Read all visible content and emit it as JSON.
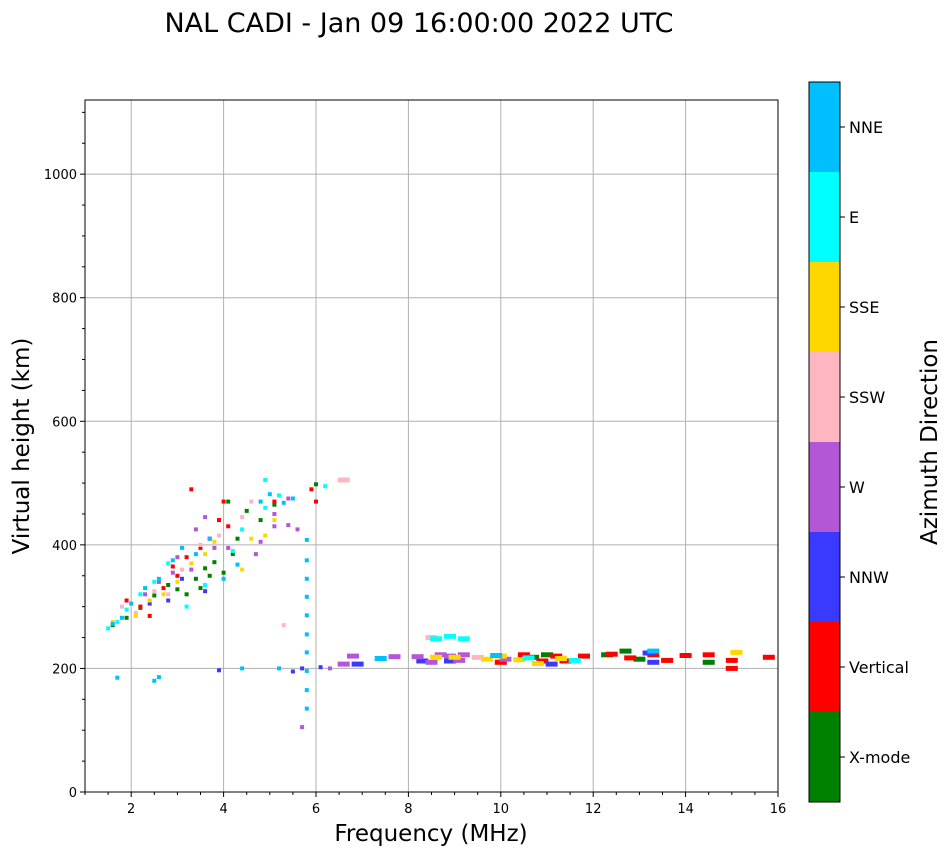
{
  "chart_data": {
    "type": "scatter",
    "title": "NAL CADI - Jan 09 16:00:00 2022 UTC",
    "xlabel": "Frequency (MHz)",
    "ylabel": "Virtual height (km)",
    "xlim": [
      1,
      16
    ],
    "ylim": [
      0,
      1120
    ],
    "xticks": [
      2,
      4,
      6,
      8,
      10,
      12,
      14,
      16
    ],
    "yticks": [
      0,
      200,
      400,
      600,
      800,
      1000
    ],
    "grid": true,
    "colorbar": {
      "label": "Azimuth Direction",
      "categories": [
        {
          "name": "X-mode",
          "color": "#008000"
        },
        {
          "name": "Vertical",
          "color": "#ff0000"
        },
        {
          "name": "NNW",
          "color": "#3a3aff"
        },
        {
          "name": "W",
          "color": "#b357d6"
        },
        {
          "name": "SSW",
          "color": "#ffb6c1"
        },
        {
          "name": "SSE",
          "color": "#ffd700"
        },
        {
          "name": "E",
          "color": "#00ffff"
        },
        {
          "name": "NNE",
          "color": "#00bfff"
        }
      ]
    },
    "series": [
      {
        "name": "X-mode",
        "points": [
          [
            1.6,
            270
          ],
          [
            1.9,
            282
          ],
          [
            2.2,
            298
          ],
          [
            2.5,
            318
          ],
          [
            2.8,
            335
          ],
          [
            3.0,
            328
          ],
          [
            3.2,
            320
          ],
          [
            3.4,
            345
          ],
          [
            3.5,
            330
          ],
          [
            3.6,
            362
          ],
          [
            3.7,
            350
          ],
          [
            3.8,
            372
          ],
          [
            4.0,
            355
          ],
          [
            4.2,
            385
          ],
          [
            4.3,
            410
          ],
          [
            4.5,
            455
          ],
          [
            4.1,
            470
          ],
          [
            4.8,
            440
          ],
          [
            5.1,
            465
          ],
          [
            6.0,
            498
          ],
          [
            10.7,
            218
          ],
          [
            11.0,
            222
          ],
          [
            12.3,
            222
          ],
          [
            12.7,
            228
          ],
          [
            13.0,
            215
          ],
          [
            14.5,
            210
          ]
        ]
      },
      {
        "name": "Vertical",
        "points": [
          [
            1.9,
            310
          ],
          [
            2.2,
            300
          ],
          [
            2.4,
            285
          ],
          [
            2.7,
            330
          ],
          [
            2.9,
            365
          ],
          [
            3.0,
            350
          ],
          [
            3.2,
            380
          ],
          [
            3.3,
            490
          ],
          [
            3.5,
            395
          ],
          [
            3.7,
            410
          ],
          [
            3.9,
            440
          ],
          [
            4.0,
            470
          ],
          [
            4.1,
            430
          ],
          [
            5.1,
            470
          ],
          [
            5.9,
            490
          ],
          [
            6.0,
            470
          ],
          [
            10.0,
            210
          ],
          [
            10.5,
            222
          ],
          [
            10.9,
            212
          ],
          [
            11.2,
            220
          ],
          [
            11.4,
            212
          ],
          [
            11.8,
            220
          ],
          [
            12.4,
            223
          ],
          [
            12.8,
            217
          ],
          [
            13.3,
            222
          ],
          [
            13.6,
            213
          ],
          [
            14.0,
            221
          ],
          [
            14.5,
            222
          ],
          [
            15.0,
            213
          ],
          [
            15.0,
            200
          ],
          [
            15.8,
            218
          ]
        ]
      },
      {
        "name": "NNW",
        "points": [
          [
            2.4,
            305
          ],
          [
            2.8,
            310
          ],
          [
            3.1,
            345
          ],
          [
            3.6,
            325
          ],
          [
            3.9,
            197
          ],
          [
            5.5,
            195
          ],
          [
            5.7,
            200
          ],
          [
            6.1,
            202
          ],
          [
            6.9,
            207
          ],
          [
            8.3,
            212
          ],
          [
            8.9,
            212
          ],
          [
            11.1,
            207
          ],
          [
            13.2,
            225
          ],
          [
            13.3,
            210
          ]
        ]
      },
      {
        "name": "W",
        "points": [
          [
            2.3,
            320
          ],
          [
            2.6,
            340
          ],
          [
            2.9,
            355
          ],
          [
            3.0,
            380
          ],
          [
            3.3,
            360
          ],
          [
            3.4,
            425
          ],
          [
            3.6,
            445
          ],
          [
            3.8,
            395
          ],
          [
            4.1,
            395
          ],
          [
            4.7,
            385
          ],
          [
            4.8,
            405
          ],
          [
            5.1,
            430
          ],
          [
            5.4,
            432
          ],
          [
            5.6,
            425
          ],
          [
            5.4,
            475
          ],
          [
            5.1,
            450
          ],
          [
            5.7,
            105
          ],
          [
            6.3,
            200
          ],
          [
            6.6,
            207
          ],
          [
            6.8,
            220
          ],
          [
            7.7,
            219
          ],
          [
            8.2,
            219
          ],
          [
            8.5,
            210
          ],
          [
            8.7,
            222
          ],
          [
            8.9,
            220
          ],
          [
            9.1,
            213
          ],
          [
            9.2,
            222
          ],
          [
            10.1,
            215
          ]
        ]
      },
      {
        "name": "SSW",
        "points": [
          [
            1.8,
            300
          ],
          [
            2.1,
            290
          ],
          [
            2.5,
            325
          ],
          [
            2.8,
            320
          ],
          [
            3.1,
            360
          ],
          [
            3.5,
            400
          ],
          [
            3.9,
            415
          ],
          [
            4.4,
            445
          ],
          [
            4.6,
            470
          ],
          [
            5.3,
            270
          ],
          [
            6.6,
            505
          ],
          [
            8.5,
            250
          ],
          [
            9.5,
            218
          ]
        ]
      },
      {
        "name": "SSE",
        "points": [
          [
            1.6,
            275
          ],
          [
            2.1,
            285
          ],
          [
            2.4,
            310
          ],
          [
            2.7,
            320
          ],
          [
            3.0,
            340
          ],
          [
            3.3,
            370
          ],
          [
            3.6,
            385
          ],
          [
            3.8,
            405
          ],
          [
            4.4,
            360
          ],
          [
            4.6,
            410
          ],
          [
            4.9,
            415
          ],
          [
            5.1,
            440
          ],
          [
            8.6,
            218
          ],
          [
            9.0,
            218
          ],
          [
            9.7,
            215
          ],
          [
            10.0,
            220
          ],
          [
            10.4,
            214
          ],
          [
            10.8,
            208
          ],
          [
            11.3,
            216
          ],
          [
            15.1,
            226
          ]
        ]
      },
      {
        "name": "E",
        "points": [
          [
            1.5,
            265
          ],
          [
            1.7,
            275
          ],
          [
            1.9,
            295
          ],
          [
            2.2,
            320
          ],
          [
            2.5,
            340
          ],
          [
            2.8,
            370
          ],
          [
            3.2,
            300
          ],
          [
            3.6,
            335
          ],
          [
            4.2,
            390
          ],
          [
            4.4,
            425
          ],
          [
            4.9,
            460
          ],
          [
            5.2,
            480
          ],
          [
            4.9,
            505
          ],
          [
            6.2,
            495
          ],
          [
            8.6,
            248
          ],
          [
            8.9,
            252
          ],
          [
            9.2,
            248
          ],
          [
            10.6,
            217
          ],
          [
            11.6,
            213
          ]
        ]
      },
      {
        "name": "NNE",
        "points": [
          [
            1.6,
            272
          ],
          [
            1.8,
            282
          ],
          [
            2.0,
            305
          ],
          [
            2.3,
            330
          ],
          [
            2.6,
            345
          ],
          [
            2.9,
            375
          ],
          [
            3.1,
            395
          ],
          [
            3.4,
            385
          ],
          [
            3.7,
            410
          ],
          [
            4.0,
            345
          ],
          [
            4.3,
            368
          ],
          [
            4.4,
            200
          ],
          [
            4.8,
            470
          ],
          [
            5.0,
            482
          ],
          [
            5.3,
            468
          ],
          [
            5.5,
            475
          ],
          [
            5.2,
            200
          ],
          [
            1.7,
            185
          ],
          [
            2.5,
            180
          ],
          [
            2.6,
            186
          ],
          [
            5.8,
            408
          ],
          [
            5.8,
            375
          ],
          [
            5.8,
            345
          ],
          [
            5.8,
            316
          ],
          [
            5.8,
            286
          ],
          [
            5.8,
            255
          ],
          [
            5.8,
            226
          ],
          [
            5.8,
            165
          ],
          [
            5.8,
            135
          ],
          [
            5.8,
            196
          ],
          [
            7.4,
            216
          ],
          [
            9.9,
            221
          ],
          [
            13.3,
            228
          ]
        ]
      }
    ]
  }
}
